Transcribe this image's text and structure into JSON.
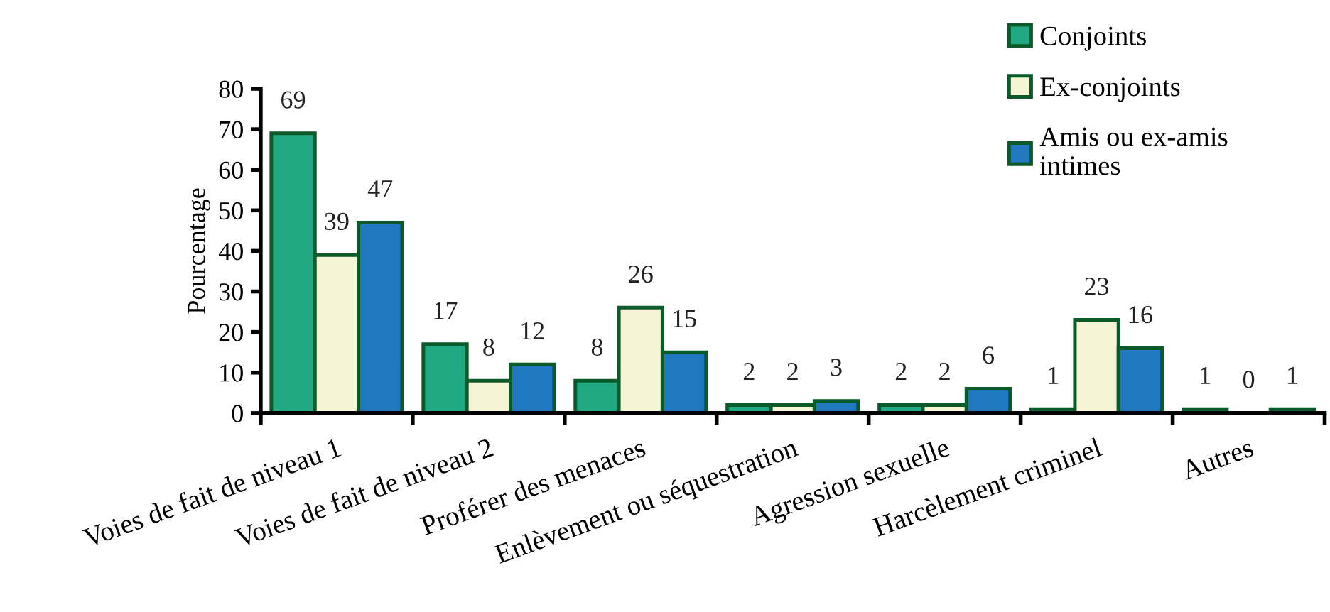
{
  "chart_data": {
    "type": "bar",
    "ylabel": "Pourcentage",
    "categories": [
      "Voies de fait de niveau 1",
      "Voies de fait de niveau 2",
      "Proférer des menaces",
      "Enlèvement ou séquestration",
      "Agression sexuelle",
      "Harcèlement criminel",
      "Autres"
    ],
    "series": [
      {
        "name": "Conjoints",
        "color": "#1fa882",
        "values": [
          69,
          17,
          8,
          2,
          2,
          1,
          1
        ]
      },
      {
        "name": "Ex-conjoints",
        "color": "#f5f5d5",
        "values": [
          39,
          8,
          26,
          2,
          2,
          23,
          0
        ]
      },
      {
        "name": "Amis ou ex-amis\nintimes",
        "color": "#1f78c0",
        "values": [
          47,
          12,
          15,
          3,
          6,
          16,
          1
        ]
      }
    ],
    "ylim": [
      0,
      80
    ],
    "yticks": [
      0,
      10,
      20,
      30,
      40,
      50,
      60,
      70,
      80
    ],
    "data_labels": true,
    "grid": false,
    "legend": "top right"
  }
}
